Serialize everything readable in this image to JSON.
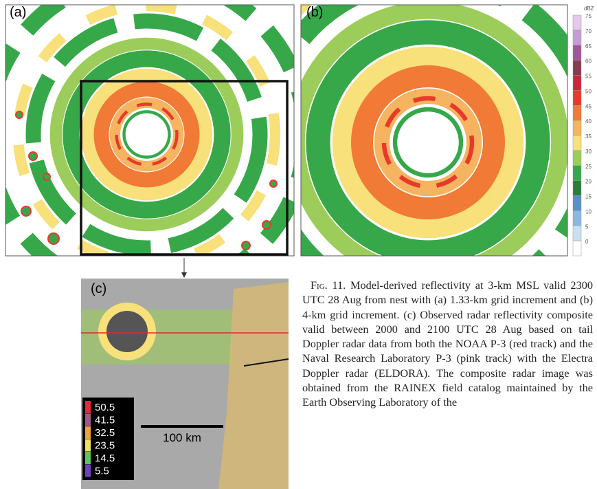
{
  "panels": [
    {
      "label": "(a)"
    },
    {
      "label": "(b)"
    },
    {
      "label": "(c)"
    }
  ],
  "colorbar": {
    "unit": "dBZ",
    "labels": [
      "75",
      "70",
      "65",
      "60",
      "55",
      "50",
      "45",
      "40",
      "35",
      "30",
      "25",
      "20",
      "15",
      "10",
      "5",
      "0"
    ],
    "colors": [
      "#e6c8ec",
      "#c79ad8",
      "#a0569a",
      "#8a3a4e",
      "#c8283a",
      "#e83a2a",
      "#f07a36",
      "#f6b460",
      "#f8e07a",
      "#9ccd5a",
      "#36a84a",
      "#2a7e3a",
      "#5a8ec8",
      "#8ab8e0",
      "#c8e0f2",
      "#ffffff"
    ]
  },
  "panel_c": {
    "legend": [
      "50.5",
      "41.5",
      "32.5",
      "23.5",
      "14.5",
      "5.5"
    ],
    "legend_colors": [
      "#e8283a",
      "#a05a8a",
      "#f0a040",
      "#f0e060",
      "#5ac85a",
      "#7040c0"
    ],
    "scale": "100 km"
  },
  "caption": {
    "lead": "Fig. 11.",
    "text": "Model-derived reflectivity at 3-km MSL valid 2300 UTC 28 Aug from nest with (a) 1.33-km grid increment and (b) 4-km grid increment. (c) Observed radar reflectivity composite valid between 2000 and 2100 UTC 28 Aug based on tail Doppler radar data from both the NOAA P-3 (red track) and the Naval Research Laboratory P-3 (pink track) with the Electra Doppler radar (ELDORA). The composite radar image was obtained from the RAINEX field catalog maintained by the Earth Observing Laboratory of the"
  }
}
